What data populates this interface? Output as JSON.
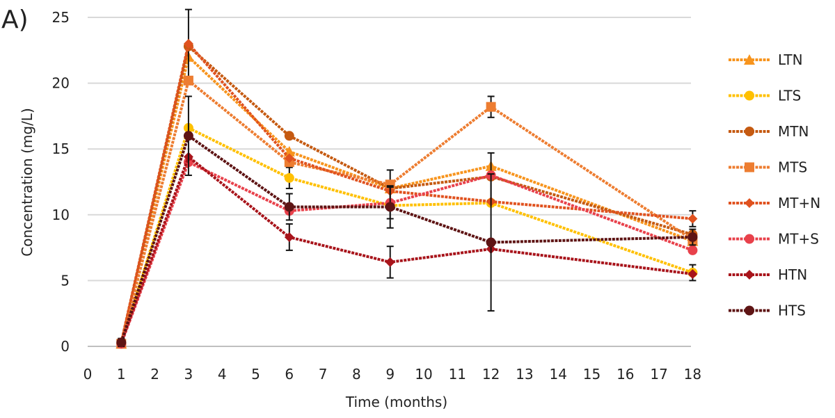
{
  "chart_data": {
    "type": "line",
    "panel_label": "A)",
    "title": "",
    "xlabel": "Time (months)",
    "ylabel": "Concentration (mg/L)",
    "xlim": [
      0,
      18
    ],
    "ylim": [
      0,
      25
    ],
    "x_ticks": [
      0,
      1,
      2,
      3,
      4,
      5,
      6,
      7,
      8,
      9,
      10,
      11,
      12,
      13,
      14,
      15,
      16,
      17,
      18
    ],
    "y_ticks": [
      0,
      5,
      10,
      15,
      20,
      25
    ],
    "grid": "horizontal",
    "legend_position": "right",
    "x": [
      1,
      3,
      6,
      9,
      12,
      18
    ],
    "series": [
      {
        "name": "LTN",
        "color": "#f7941d",
        "marker": "triangle",
        "values": [
          0.2,
          22.0,
          14.8,
          12.0,
          13.7,
          8.0
        ],
        "errors": [
          0,
          0,
          0,
          0,
          0,
          0
        ]
      },
      {
        "name": "LTS",
        "color": "#ffc000",
        "marker": "circle",
        "values": [
          0.2,
          16.6,
          12.8,
          10.7,
          10.9,
          5.6
        ],
        "errors": [
          0,
          0,
          0.8,
          0,
          0,
          0.6
        ]
      },
      {
        "name": "MTN",
        "color": "#c55a11",
        "marker": "circle",
        "values": [
          0.2,
          22.8,
          16.0,
          12.0,
          12.9,
          8.5
        ],
        "errors": [
          0,
          2.8,
          0,
          1.4,
          1.8,
          0
        ]
      },
      {
        "name": "MTS",
        "color": "#ed7d31",
        "marker": "square",
        "values": [
          0.2,
          20.2,
          14.0,
          12.3,
          18.2,
          8.1
        ],
        "errors": [
          0,
          0,
          0,
          0,
          0.8,
          0
        ]
      },
      {
        "name": "MT+N",
        "color": "#e0521f",
        "marker": "diamond",
        "values": [
          0.3,
          23.0,
          14.3,
          11.8,
          11.0,
          9.7
        ],
        "errors": [
          0,
          0,
          0,
          0,
          0,
          0.6
        ]
      },
      {
        "name": "MT+S",
        "color": "#e8414b",
        "marker": "circle",
        "values": [
          0.2,
          14.0,
          10.3,
          10.9,
          13.0,
          7.3
        ],
        "errors": [
          0,
          0,
          0,
          1.2,
          0,
          0
        ]
      },
      {
        "name": "HTN",
        "color": "#a8141b",
        "marker": "diamond",
        "values": [
          0.3,
          14.4,
          8.3,
          6.4,
          7.4,
          5.5
        ],
        "errors": [
          0,
          0,
          1.0,
          1.2,
          0,
          0
        ]
      },
      {
        "name": "HTS",
        "color": "#5e1414",
        "marker": "circle",
        "values": [
          0.3,
          16.0,
          10.6,
          10.6,
          7.9,
          8.3
        ],
        "errors": [
          0.3,
          3.0,
          1.0,
          1.6,
          5.2,
          0.6
        ]
      }
    ]
  }
}
